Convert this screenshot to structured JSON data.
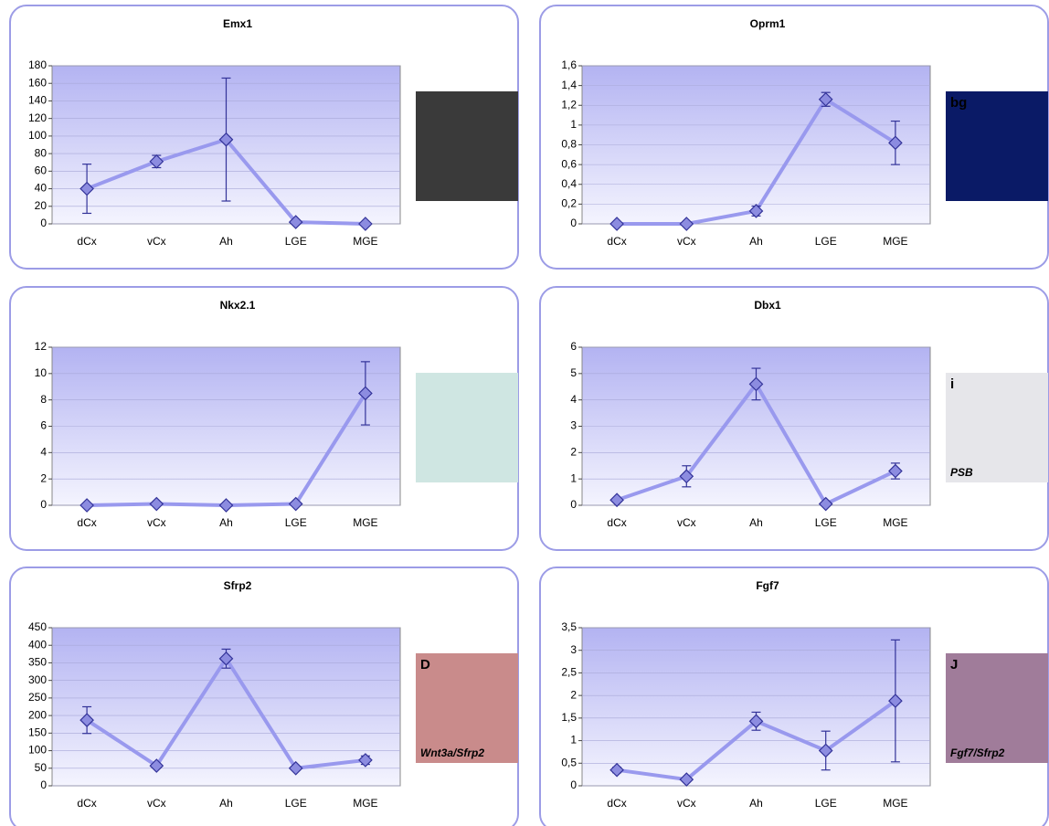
{
  "chart_data": [
    {
      "type": "line",
      "title": "Emx1",
      "categories": [
        "dCx",
        "vCx",
        "Ah",
        "LGE",
        "MGE"
      ],
      "values": [
        40,
        71,
        96,
        2,
        0
      ],
      "errors": [
        28,
        7,
        70,
        0,
        0
      ],
      "color": "#9999ee",
      "ylim": [
        0,
        180
      ],
      "yticks": [
        0,
        20,
        40,
        60,
        80,
        100,
        120,
        140,
        160,
        180
      ],
      "grid": true,
      "image_labels": []
    },
    {
      "type": "line",
      "title": "Oprm1",
      "categories": [
        "dCx",
        "vCx",
        "Ah",
        "LGE",
        "MGE"
      ],
      "values": [
        0,
        0,
        0.13,
        1.26,
        0.82
      ],
      "errors": [
        0,
        0,
        0.05,
        0.07,
        0.22
      ],
      "color": "#9999ee",
      "ylim": [
        0,
        1.6
      ],
      "yticks": [
        0,
        {
          "value": 0.2,
          "label": "0,2"
        },
        {
          "value": 0.4,
          "label": "0,4"
        },
        {
          "value": 0.6,
          "label": "0,6"
        },
        {
          "value": 0.8,
          "label": "0,8"
        },
        1,
        {
          "value": 1.2,
          "label": "1,2"
        },
        {
          "value": 1.4,
          "label": "1,4"
        },
        {
          "value": 1.6,
          "label": "1,6"
        }
      ],
      "grid": true,
      "image_labels": [
        "bg"
      ]
    },
    {
      "type": "line",
      "title": "Nkx2.1",
      "categories": [
        "dCx",
        "vCx",
        "Ah",
        "LGE",
        "MGE"
      ],
      "values": [
        0,
        0.1,
        0,
        0.1,
        8.5
      ],
      "errors": [
        0,
        0,
        0,
        0,
        2.4
      ],
      "color": "#9999ee",
      "ylim": [
        0,
        12
      ],
      "yticks": [
        0,
        2,
        4,
        6,
        8,
        10,
        12
      ],
      "grid": true,
      "image_labels": []
    },
    {
      "type": "line",
      "title": "Dbx1",
      "categories": [
        "dCx",
        "vCx",
        "Ah",
        "LGE",
        "MGE"
      ],
      "values": [
        0.2,
        1.1,
        4.6,
        0.05,
        1.3
      ],
      "errors": [
        0,
        0.4,
        0.6,
        0,
        0.3
      ],
      "color": "#9999ee",
      "ylim": [
        0,
        6
      ],
      "yticks": [
        0,
        1,
        2,
        3,
        4,
        5,
        6
      ],
      "grid": true,
      "image_labels": [
        "i",
        "PSB"
      ]
    },
    {
      "type": "line",
      "title": "Sfrp2",
      "categories": [
        "dCx",
        "vCx",
        "Ah",
        "LGE",
        "MGE"
      ],
      "values": [
        187,
        57,
        362,
        50,
        73
      ],
      "errors": [
        38,
        0,
        27,
        0,
        12
      ],
      "color": "#9999ee",
      "ylim": [
        0,
        450
      ],
      "yticks": [
        0,
        50,
        100,
        150,
        200,
        250,
        300,
        350,
        400,
        450
      ],
      "grid": true,
      "image_labels": [
        "D",
        "Wnt3a/Sfrp2"
      ]
    },
    {
      "type": "line",
      "title": "Fgf7",
      "categories": [
        "dCx",
        "vCx",
        "Ah",
        "LGE",
        "MGE"
      ],
      "values": [
        0.35,
        0.14,
        1.43,
        0.78,
        1.88
      ],
      "errors": [
        0.06,
        0.03,
        0.2,
        0.43,
        1.35
      ],
      "color": "#9999ee",
      "ylim": [
        0,
        3.5
      ],
      "yticks": [
        0,
        {
          "value": 0.5,
          "label": "0,5"
        },
        1,
        {
          "value": 1.5,
          "label": "1,5"
        },
        2,
        {
          "value": 2.5,
          "label": "2,5"
        },
        3,
        {
          "value": 3.5,
          "label": "3,5"
        }
      ],
      "grid": true,
      "image_labels": [
        "J",
        "Fgf7/Sfrp2"
      ]
    }
  ]
}
